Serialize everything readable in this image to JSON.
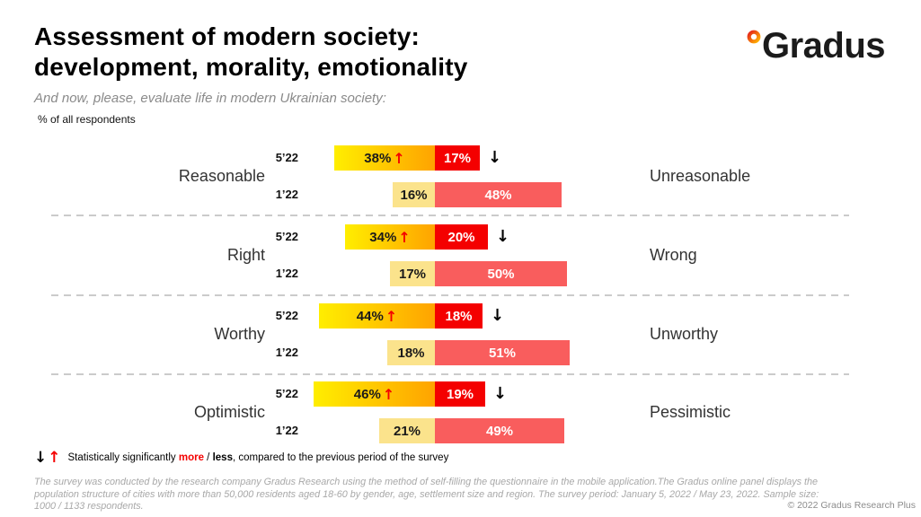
{
  "header": {
    "title_line1": "Assessment of modern society:",
    "title_line2": "development, morality, emotionality",
    "subtitle": "And now, please, evaluate life in modern Ukrainian society:",
    "note": "% of all respondents"
  },
  "logo": {
    "text": "Gradus"
  },
  "chart_data": {
    "type": "bar",
    "subtype": "diverging-horizontal-stacked",
    "unit": "% of all respondents",
    "periods": [
      "5’22",
      "1’22"
    ],
    "up_arrow": "↑",
    "down_arrow": "↓",
    "colors": {
      "gradient_start": "#FFEE00",
      "gradient_end": "#FFA300",
      "strong_negative": "#F40000",
      "pale_positive": "#FBE38C",
      "soft_negative": "#F95D5D",
      "up_arrow": "#F40000",
      "down_arrow": "#000000",
      "divider": "#CBCBCB"
    },
    "groups": [
      {
        "left_label": "Reasonable",
        "right_label": "Unreasonable",
        "rows": [
          {
            "period": "5’22",
            "positive": 38,
            "negative": 17,
            "positive_up": true,
            "negative_down": true
          },
          {
            "period": "1’22",
            "positive": 16,
            "negative": 48
          }
        ]
      },
      {
        "left_label": "Right",
        "right_label": "Wrong",
        "rows": [
          {
            "period": "5’22",
            "positive": 34,
            "negative": 20,
            "positive_up": true,
            "negative_down": true
          },
          {
            "period": "1’22",
            "positive": 17,
            "negative": 50
          }
        ]
      },
      {
        "left_label": "Worthy",
        "right_label": "Unworthy",
        "rows": [
          {
            "period": "5’22",
            "positive": 44,
            "negative": 18,
            "positive_up": true,
            "negative_down": true
          },
          {
            "period": "1’22",
            "positive": 18,
            "negative": 51
          }
        ]
      },
      {
        "left_label": "Optimistic",
        "right_label": "Pessimistic",
        "rows": [
          {
            "period": "5’22",
            "positive": 46,
            "negative": 19,
            "positive_up": true,
            "negative_down": true
          },
          {
            "period": "1’22",
            "positive": 21,
            "negative": 49
          }
        ]
      }
    ]
  },
  "legend": {
    "down_arrow": "↓",
    "up_arrow": "↑",
    "prefix": "Statistically significantly ",
    "more_label": "more",
    "separator": " / ",
    "less_label": "less",
    "suffix": ", compared to the previous period of the survey"
  },
  "footer": {
    "disclaimer": "The survey was conducted by the research company Gradus Research using the method of self-filling the questionnaire in the mobile application.The Gradus online panel displays the population structure of cities with more than 50,000 residents aged 18-60 by gender, age, settlement size and region. The survey period: January 5, 2022 / May 23, 2022. Sample size: 1000 / 1133 respondents.",
    "copyright": "© 2022 Gradus Research Plus"
  }
}
